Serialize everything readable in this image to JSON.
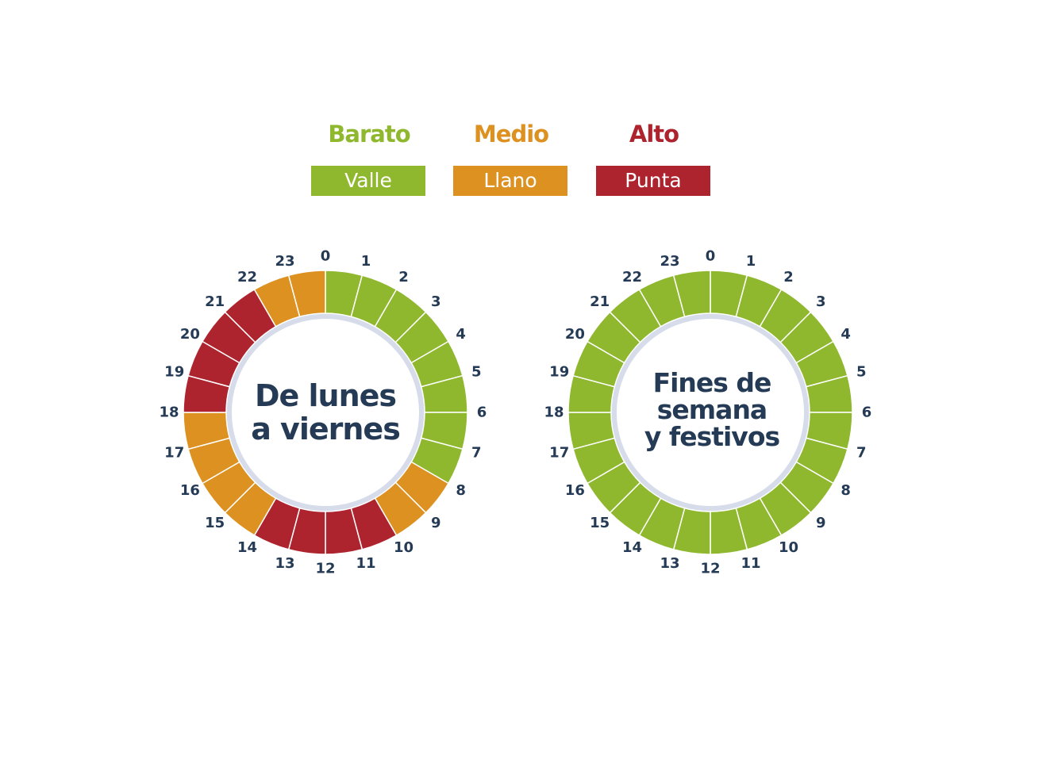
{
  "colors": {
    "valle": "#8fb82e",
    "llano": "#dc9121",
    "punta": "#ad242e",
    "ring_inner": "#d7dcea",
    "hour_text": "#243a55"
  },
  "legend": {
    "categories": [
      {
        "label": "Barato",
        "color": "#8fb82e"
      },
      {
        "label": "Medio",
        "color": "#dc9121"
      },
      {
        "label": "Alto",
        "color": "#ad242e"
      }
    ],
    "periods": [
      {
        "label": "Valle",
        "color": "#8fb82e"
      },
      {
        "label": "Llano",
        "color": "#dc9121"
      },
      {
        "label": "Punta",
        "color": "#ad242e"
      }
    ]
  },
  "hours": [
    "0",
    "1",
    "2",
    "3",
    "4",
    "5",
    "6",
    "7",
    "8",
    "9",
    "10",
    "11",
    "12",
    "13",
    "14",
    "15",
    "16",
    "17",
    "18",
    "19",
    "20",
    "21",
    "22",
    "23"
  ],
  "clocks": [
    {
      "title_lines": [
        "De lunes",
        "a viernes"
      ],
      "periods": [
        "valle",
        "valle",
        "valle",
        "valle",
        "valle",
        "valle",
        "valle",
        "valle",
        "llano",
        "llano",
        "punta",
        "punta",
        "punta",
        "punta",
        "llano",
        "llano",
        "llano",
        "llano",
        "punta",
        "punta",
        "punta",
        "punta",
        "llano",
        "llano"
      ]
    },
    {
      "title_lines": [
        "Fines de",
        "semana",
        "y festivos"
      ],
      "periods": [
        "valle",
        "valle",
        "valle",
        "valle",
        "valle",
        "valle",
        "valle",
        "valle",
        "valle",
        "valle",
        "valle",
        "valle",
        "valle",
        "valle",
        "valle",
        "valle",
        "valle",
        "valle",
        "valle",
        "valle",
        "valle",
        "valle",
        "valle",
        "valle"
      ]
    }
  ]
}
